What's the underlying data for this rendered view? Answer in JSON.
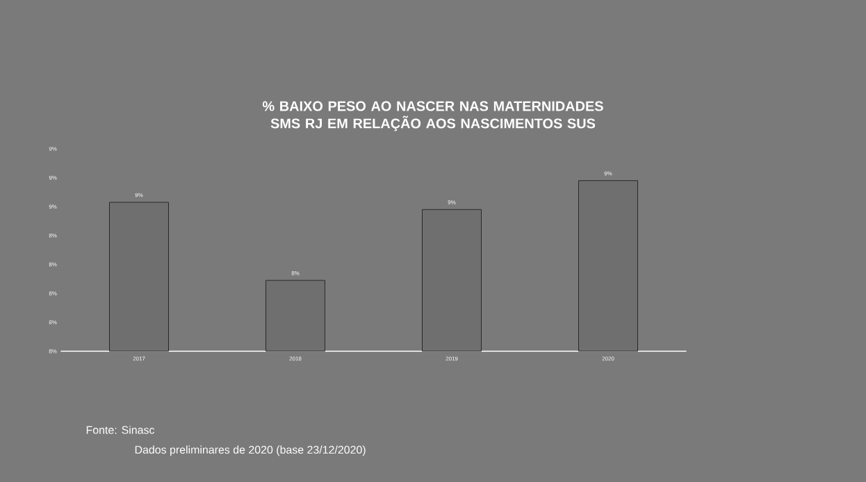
{
  "chart_data": {
    "type": "bar",
    "title": "% BAIXO PESO AO NASCER NAS MATERNIDADES SMS RJ EM RELAÇÃO AOS NASCIMENTOS SUS",
    "categories": [
      "2017",
      "2018",
      "2019",
      "2020"
    ],
    "values": [
      8.63,
      8.09,
      8.58,
      8.78
    ],
    "value_labels": [
      "9%",
      "8%",
      "9%",
      "9%"
    ],
    "color": "#6f6f6f",
    "ylim": [
      7.6,
      9.0
    ],
    "yticks": [
      {
        "value": 7.6,
        "label": "8%"
      },
      {
        "value": 7.8,
        "label": "8%"
      },
      {
        "value": 8.0,
        "label": "8%"
      },
      {
        "value": 8.2,
        "label": "8%"
      },
      {
        "value": 8.4,
        "label": "8%"
      },
      {
        "value": 8.6,
        "label": "9%"
      },
      {
        "value": 8.8,
        "label": "9%"
      },
      {
        "value": 9.0,
        "label": "9%"
      }
    ],
    "annotations": [
      "Fonte: Sinasc",
      "Dados preliminares de 2020 (base 23/12/2020)"
    ]
  }
}
